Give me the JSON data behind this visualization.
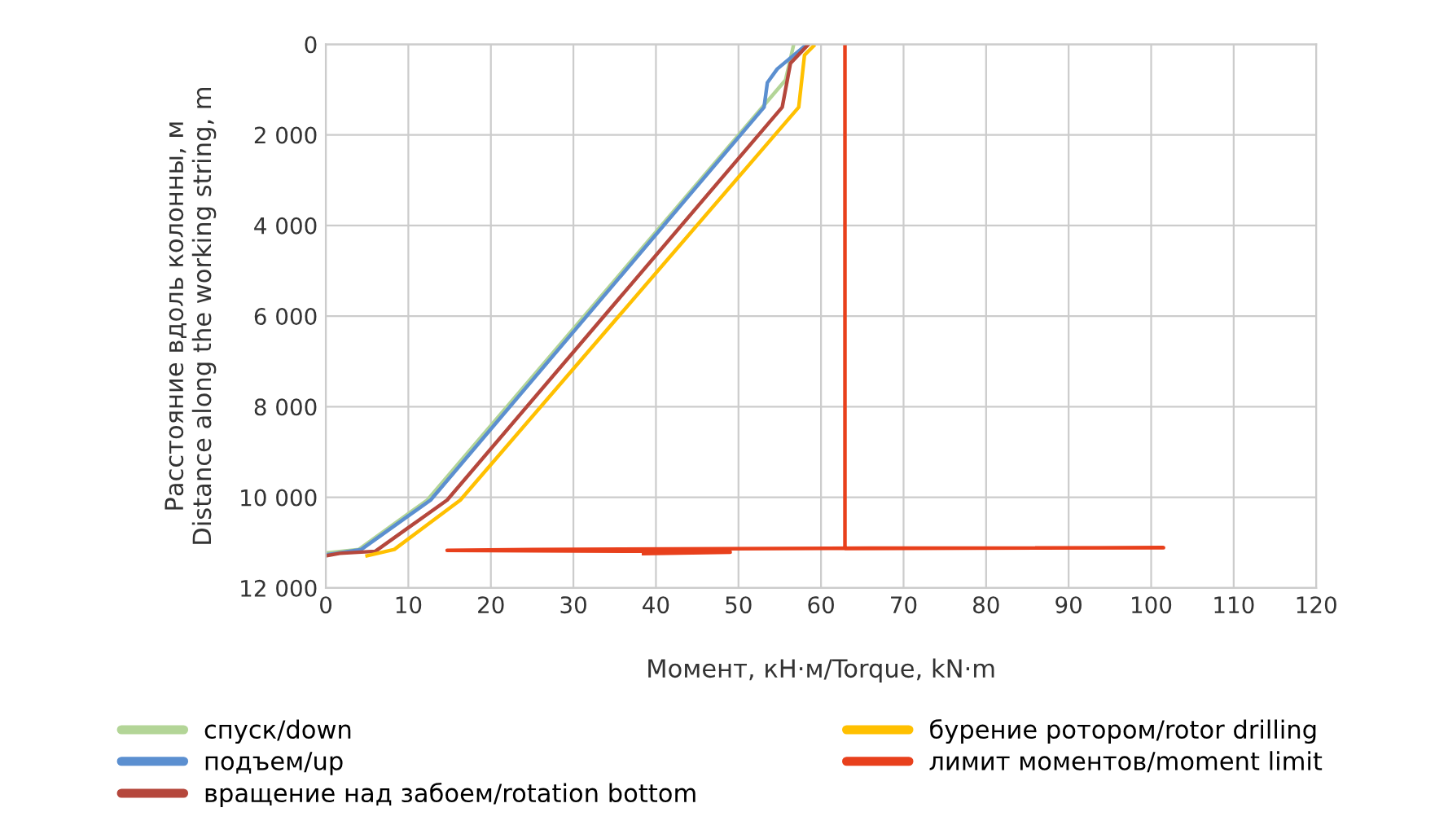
{
  "chart_data": {
    "type": "line",
    "xlabel": "Момент, кН·м/Torque, kN·m",
    "ylabel": "Расстояние вдоль колонны, м\nDistance along the working string, m",
    "xlim": [
      0,
      120
    ],
    "xticks": [
      0,
      10,
      20,
      30,
      40,
      50,
      60,
      70,
      80,
      90,
      100,
      110,
      120
    ],
    "ylim": [
      12000,
      0
    ],
    "yticks": [
      {
        "value": 0,
        "label": "0"
      },
      {
        "value": 2000,
        "label": "2 000"
      },
      {
        "value": 4000,
        "label": "4 000"
      },
      {
        "value": 6000,
        "label": "6 000"
      },
      {
        "value": 8000,
        "label": "8 000"
      },
      {
        "value": 10000,
        "label": "10 000"
      },
      {
        "value": 12000,
        "label": "12 000"
      }
    ],
    "grid": true,
    "legend": "bottom",
    "marker": "none",
    "line_style": "solid",
    "series": [
      {
        "name": "спуск/down",
        "color": "#b3d597",
        "x": [
          56.7,
          55.7,
          12.3,
          4.0,
          0
        ],
        "values": [
          0,
          790,
          10060,
          11150,
          11230
        ]
      },
      {
        "name": "подъем/up",
        "color": "#5b8fd0",
        "x": [
          58.3,
          54.7,
          53.5,
          53.1,
          12.7,
          4.3,
          1.3,
          0
        ],
        "values": [
          0,
          545,
          850,
          1390,
          10060,
          11150,
          11235,
          11270
        ]
      },
      {
        "name": "вращение над забоем/rotation bottom",
        "color": "#b5473c",
        "x": [
          58.5,
          56.3,
          55.3,
          14.7,
          6.0,
          1.7,
          0
        ],
        "values": [
          0,
          420,
          1390,
          10060,
          11190,
          11235,
          11290
        ]
      },
      {
        "name": "бурение ротором/rotor drilling",
        "color": "#ffc000",
        "x": [
          59.1,
          58.0,
          57.3,
          16.3,
          8.3,
          5.0
        ],
        "values": [
          40,
          240,
          1390,
          10060,
          11150,
          11290
        ]
      },
      {
        "name": "лимит моментов/moment limit",
        "color": "#e8401c",
        "x": [
          62.9,
          62.9,
          101.5,
          66,
          25,
          14.7,
          38.5,
          49,
          38.5
        ],
        "values": [
          0,
          11130,
          11110,
          11120,
          11150,
          11170,
          11190,
          11210,
          11240
        ]
      }
    ]
  }
}
